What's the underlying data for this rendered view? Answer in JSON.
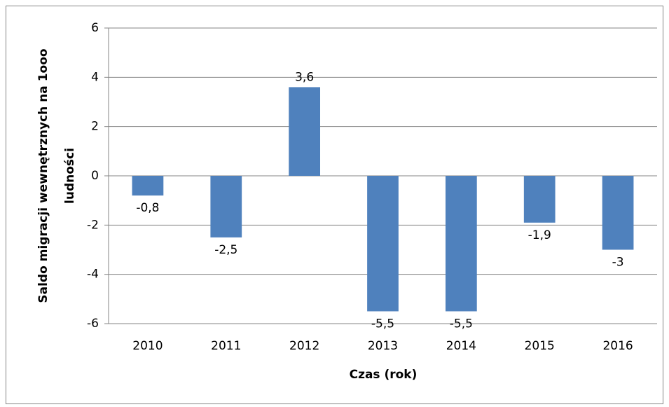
{
  "chart_data": {
    "type": "bar",
    "categories": [
      "2010",
      "2011",
      "2012",
      "2013",
      "2014",
      "2015",
      "2016"
    ],
    "values": [
      -0.8,
      -2.5,
      3.6,
      -5.5,
      -5.5,
      -1.9,
      -3
    ],
    "value_labels": [
      "-0,8",
      "-2,5",
      "3,6",
      "-5,5",
      "-5,5",
      "-1,9",
      "-3"
    ],
    "color": "#4f81bd",
    "ylim": [
      -6,
      6
    ],
    "yticks": [
      -6,
      -4,
      -2,
      0,
      2,
      4,
      6
    ],
    "grid": true,
    "x_label": "Czas (rok)",
    "y_label": [
      "Saldo migracji wewnętrznych na 1ooo",
      "ludności"
    ]
  }
}
